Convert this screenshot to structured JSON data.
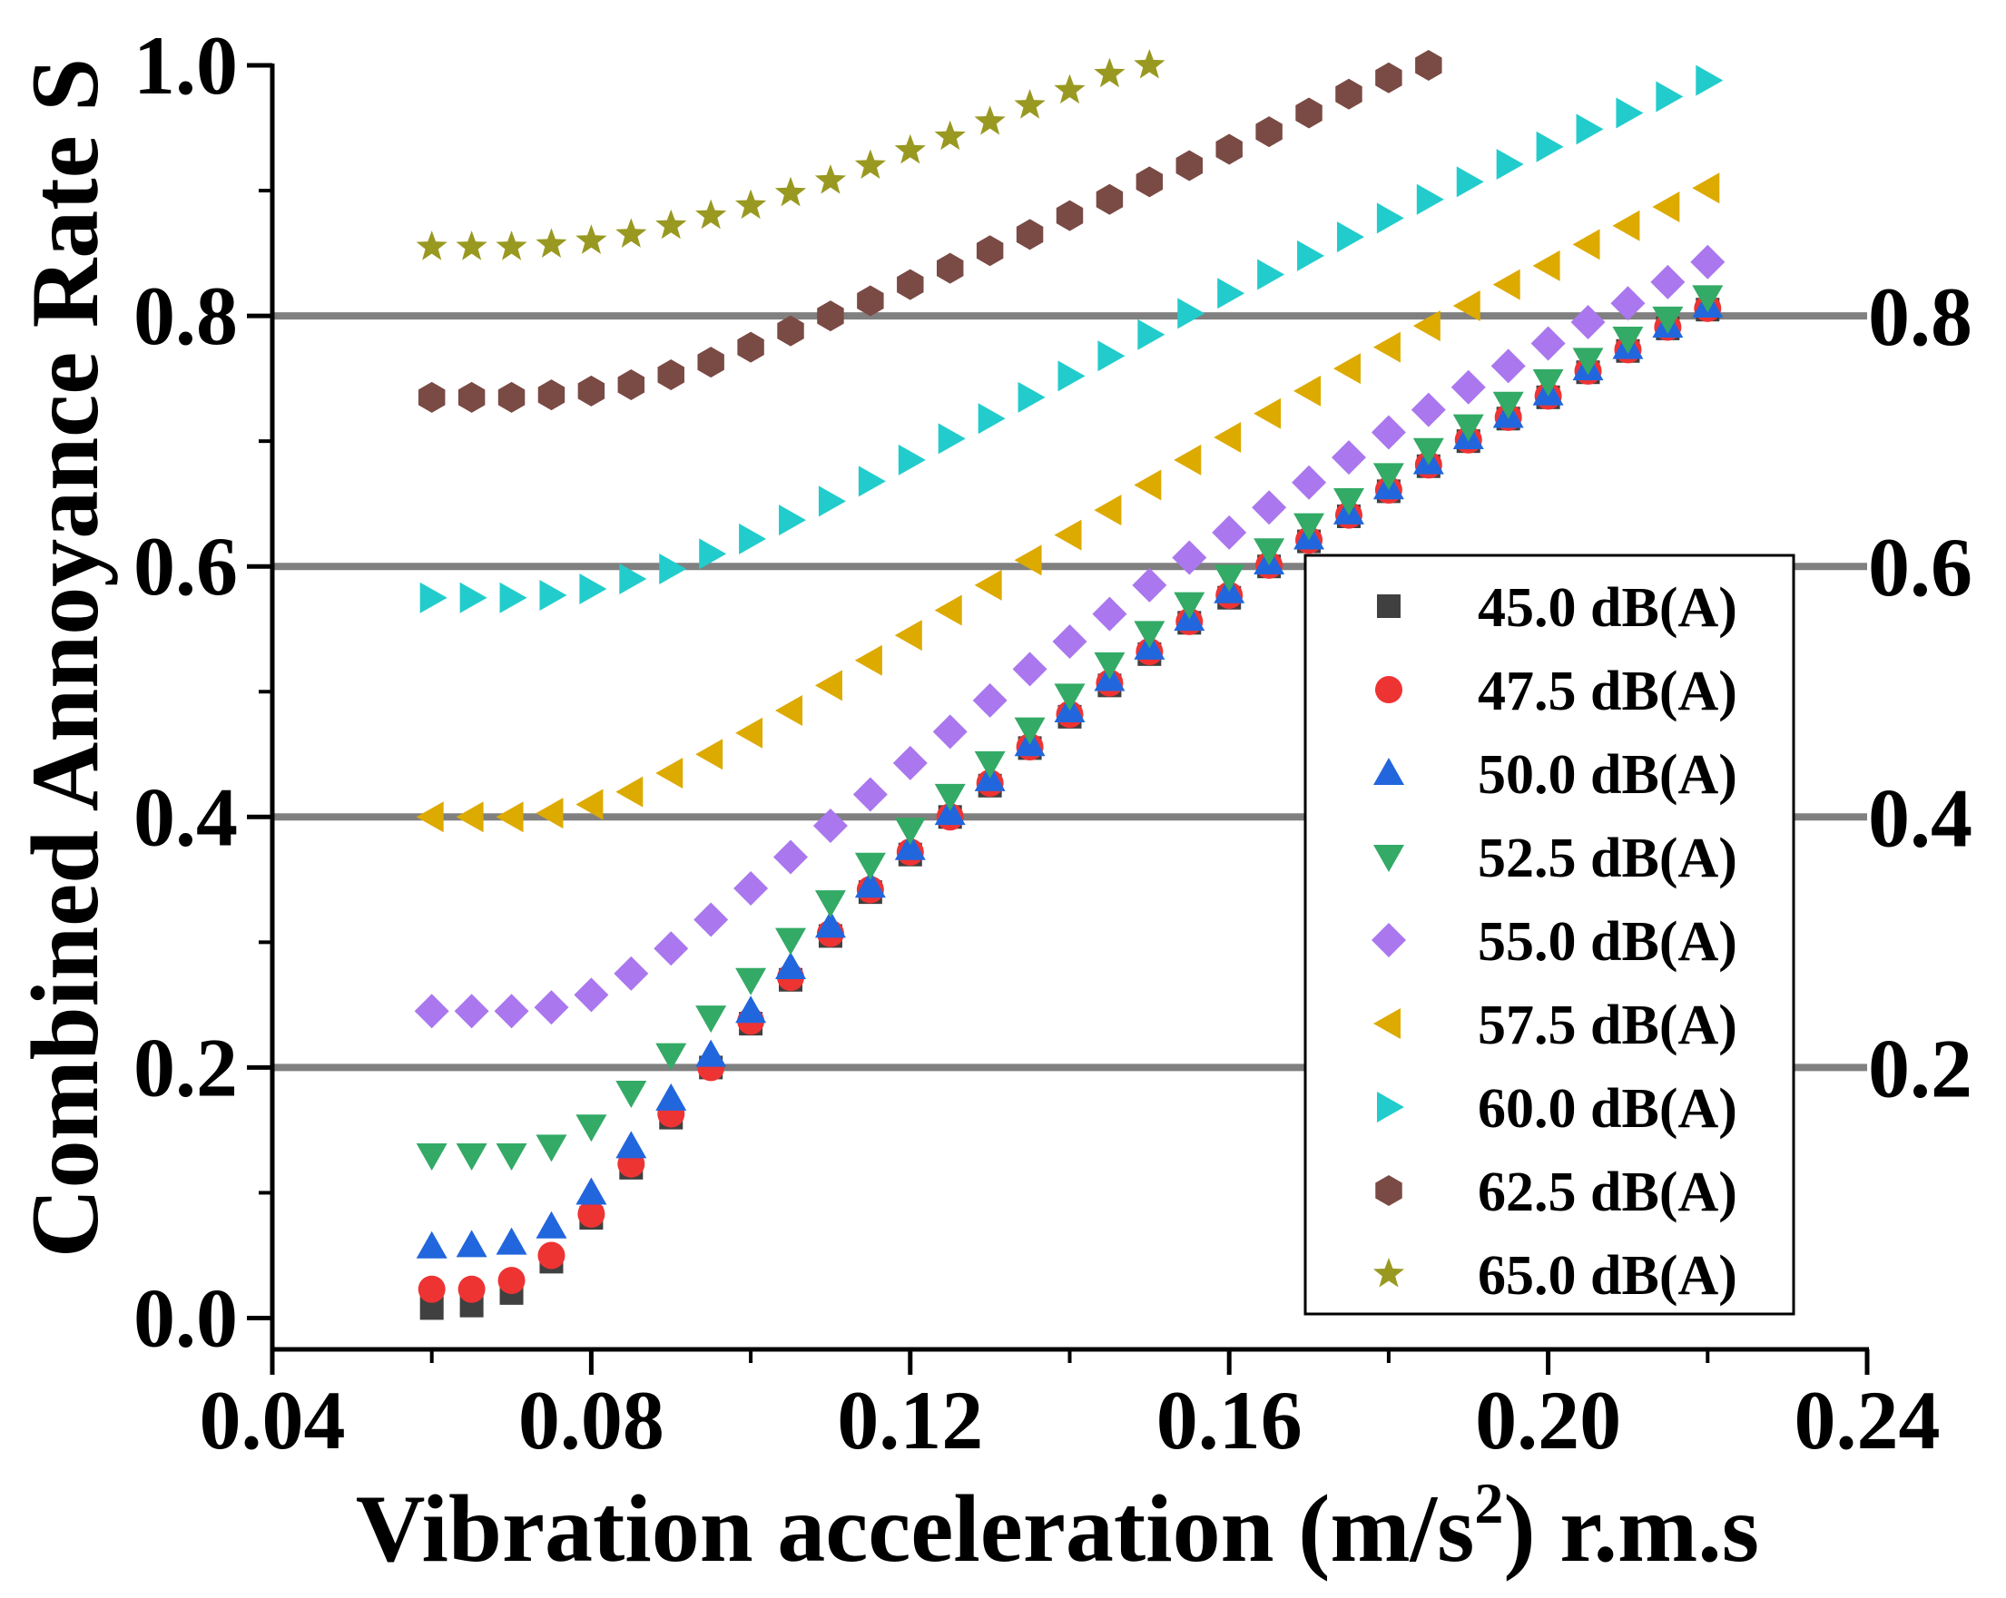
{
  "chart_data": {
    "type": "scatter",
    "xlabel": "Vibration acceleration (m/s",
    "xlabel_sup": "2",
    "xlabel_tail": ") r.m.s",
    "ylabel": "Combined Annoyance Rate S",
    "xlim": [
      0.04,
      0.24
    ],
    "ylim": [
      -0.025,
      1.0
    ],
    "xticks": [
      "0.04",
      "0.08",
      "0.12",
      "0.16",
      "0.20",
      "0.24"
    ],
    "yticks": [
      "0.0",
      "0.2",
      "0.4",
      "0.6",
      "0.8",
      "1.0"
    ],
    "reference_lines": [
      {
        "value": 0.2,
        "label": "0.2"
      },
      {
        "value": 0.4,
        "label": "0.4"
      },
      {
        "value": 0.6,
        "label": "0.6"
      },
      {
        "value": 0.8,
        "label": "0.8"
      }
    ],
    "legend_position": "lower-right",
    "x": [
      0.06,
      0.065,
      0.07,
      0.075,
      0.08,
      0.085,
      0.09,
      0.095,
      0.1,
      0.105,
      0.11,
      0.115,
      0.12,
      0.125,
      0.13,
      0.135,
      0.14,
      0.145,
      0.15,
      0.155,
      0.16,
      0.165,
      0.17,
      0.175,
      0.18,
      0.185,
      0.19,
      0.195,
      0.2,
      0.205,
      0.21,
      0.215,
      0.22
    ],
    "series": [
      {
        "name": "45.0 dB(A)",
        "marker": "square",
        "color": "#404040",
        "values": [
          0.008,
          0.01,
          0.02,
          0.045,
          0.08,
          0.12,
          0.16,
          0.2,
          0.235,
          0.27,
          0.305,
          0.34,
          0.37,
          0.4,
          0.425,
          0.455,
          0.48,
          0.505,
          0.53,
          0.555,
          0.575,
          0.6,
          0.62,
          0.64,
          0.66,
          0.68,
          0.7,
          0.718,
          0.735,
          0.755,
          0.772,
          0.79,
          0.805
        ]
      },
      {
        "name": "47.5 dB(A)",
        "marker": "circle",
        "color": "#ee3333",
        "values": [
          0.023,
          0.023,
          0.03,
          0.05,
          0.083,
          0.123,
          0.163,
          0.2,
          0.237,
          0.272,
          0.307,
          0.342,
          0.372,
          0.4,
          0.427,
          0.456,
          0.482,
          0.507,
          0.532,
          0.556,
          0.577,
          0.601,
          0.621,
          0.641,
          0.661,
          0.681,
          0.701,
          0.719,
          0.736,
          0.756,
          0.773,
          0.791,
          0.806
        ]
      },
      {
        "name": "50.0 dB(A)",
        "marker": "triangle-up",
        "color": "#2266dd",
        "values": [
          0.057,
          0.058,
          0.06,
          0.073,
          0.1,
          0.137,
          0.175,
          0.21,
          0.245,
          0.28,
          0.313,
          0.345,
          0.375,
          0.403,
          0.43,
          0.458,
          0.485,
          0.51,
          0.535,
          0.558,
          0.58,
          0.603,
          0.623,
          0.643,
          0.663,
          0.683,
          0.703,
          0.72,
          0.738,
          0.758,
          0.775,
          0.792,
          0.808
        ]
      },
      {
        "name": "52.5 dB(A)",
        "marker": "triangle-down",
        "color": "#33aa66",
        "values": [
          0.13,
          0.13,
          0.13,
          0.137,
          0.153,
          0.18,
          0.21,
          0.24,
          0.27,
          0.302,
          0.332,
          0.362,
          0.39,
          0.417,
          0.443,
          0.47,
          0.497,
          0.522,
          0.547,
          0.57,
          0.592,
          0.613,
          0.633,
          0.653,
          0.673,
          0.693,
          0.712,
          0.73,
          0.748,
          0.765,
          0.782,
          0.798,
          0.815
        ]
      },
      {
        "name": "55.0 dB(A)",
        "marker": "diamond",
        "color": "#aa77ee",
        "values": [
          0.245,
          0.245,
          0.245,
          0.248,
          0.258,
          0.275,
          0.295,
          0.318,
          0.343,
          0.368,
          0.393,
          0.418,
          0.443,
          0.468,
          0.493,
          0.518,
          0.54,
          0.562,
          0.585,
          0.607,
          0.627,
          0.647,
          0.667,
          0.687,
          0.707,
          0.725,
          0.743,
          0.76,
          0.778,
          0.795,
          0.81,
          0.827,
          0.843
        ]
      },
      {
        "name": "57.5 dB(A)",
        "marker": "triangle-left",
        "color": "#ddaa00",
        "values": [
          0.4,
          0.4,
          0.4,
          0.403,
          0.41,
          0.42,
          0.435,
          0.45,
          0.467,
          0.485,
          0.505,
          0.525,
          0.545,
          0.565,
          0.585,
          0.605,
          0.625,
          0.645,
          0.665,
          0.685,
          0.703,
          0.722,
          0.74,
          0.758,
          0.775,
          0.792,
          0.808,
          0.825,
          0.84,
          0.857,
          0.872,
          0.887,
          0.902
        ]
      },
      {
        "name": "60.0 dB(A)",
        "marker": "triangle-right",
        "color": "#22cccc",
        "values": [
          0.575,
          0.575,
          0.575,
          0.577,
          0.582,
          0.59,
          0.598,
          0.61,
          0.622,
          0.637,
          0.652,
          0.668,
          0.685,
          0.702,
          0.718,
          0.735,
          0.752,
          0.768,
          0.785,
          0.802,
          0.818,
          0.833,
          0.848,
          0.863,
          0.878,
          0.893,
          0.907,
          0.921,
          0.935,
          0.949,
          0.962,
          0.975,
          0.988
        ]
      },
      {
        "name": "62.5 dB(A)",
        "marker": "hexagon",
        "color": "#7a4a44",
        "values": [
          0.735,
          0.735,
          0.735,
          0.737,
          0.74,
          0.745,
          0.753,
          0.763,
          0.775,
          0.788,
          0.8,
          0.812,
          0.825,
          0.838,
          0.852,
          0.865,
          0.88,
          0.893,
          0.907,
          0.92,
          0.933,
          0.947,
          0.962,
          0.977,
          0.99,
          1.0
        ]
      },
      {
        "name": "65.0 dB(A)",
        "marker": "star",
        "color": "#999922",
        "values": [
          0.855,
          0.855,
          0.855,
          0.857,
          0.86,
          0.865,
          0.872,
          0.88,
          0.888,
          0.898,
          0.908,
          0.92,
          0.932,
          0.943,
          0.955,
          0.968,
          0.98,
          0.993,
          1.0
        ]
      }
    ]
  }
}
